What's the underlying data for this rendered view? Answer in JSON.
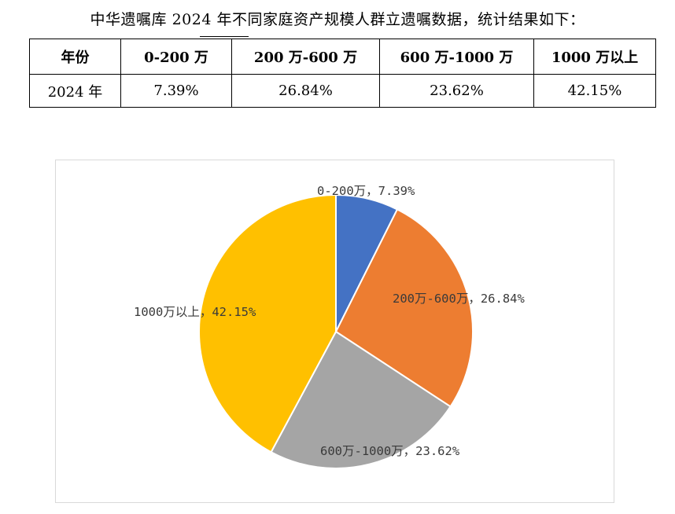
{
  "heading": "中华遗嘱库 2024 年不同家庭资产规模人群立遗嘱数据，统计结果如下：",
  "table": {
    "headers": [
      "年份",
      "0-200 万",
      "200 万-600 万",
      "600 万-1000 万",
      "1000 万以上"
    ],
    "rows": [
      [
        "2024 年",
        "7.39%",
        "26.84%",
        "23.62%",
        "42.15%"
      ]
    ]
  },
  "chart_data": {
    "type": "pie",
    "categories": [
      "0-200万",
      "200万-600万",
      "600万-1000万",
      "1000万以上"
    ],
    "values": [
      7.39,
      26.84,
      23.62,
      42.15
    ],
    "unit": "%",
    "colors": [
      "#4472C4",
      "#ED7D31",
      "#A5A5A5",
      "#FFC000"
    ],
    "start_angle_deg": 0,
    "direction": "clockwise",
    "data_labels": [
      "0-200万，7.39%",
      "200万-600万，26.84%",
      "600万-1000万，23.62%",
      "1000万以上，42.15%"
    ],
    "title": "",
    "legend": "none"
  }
}
